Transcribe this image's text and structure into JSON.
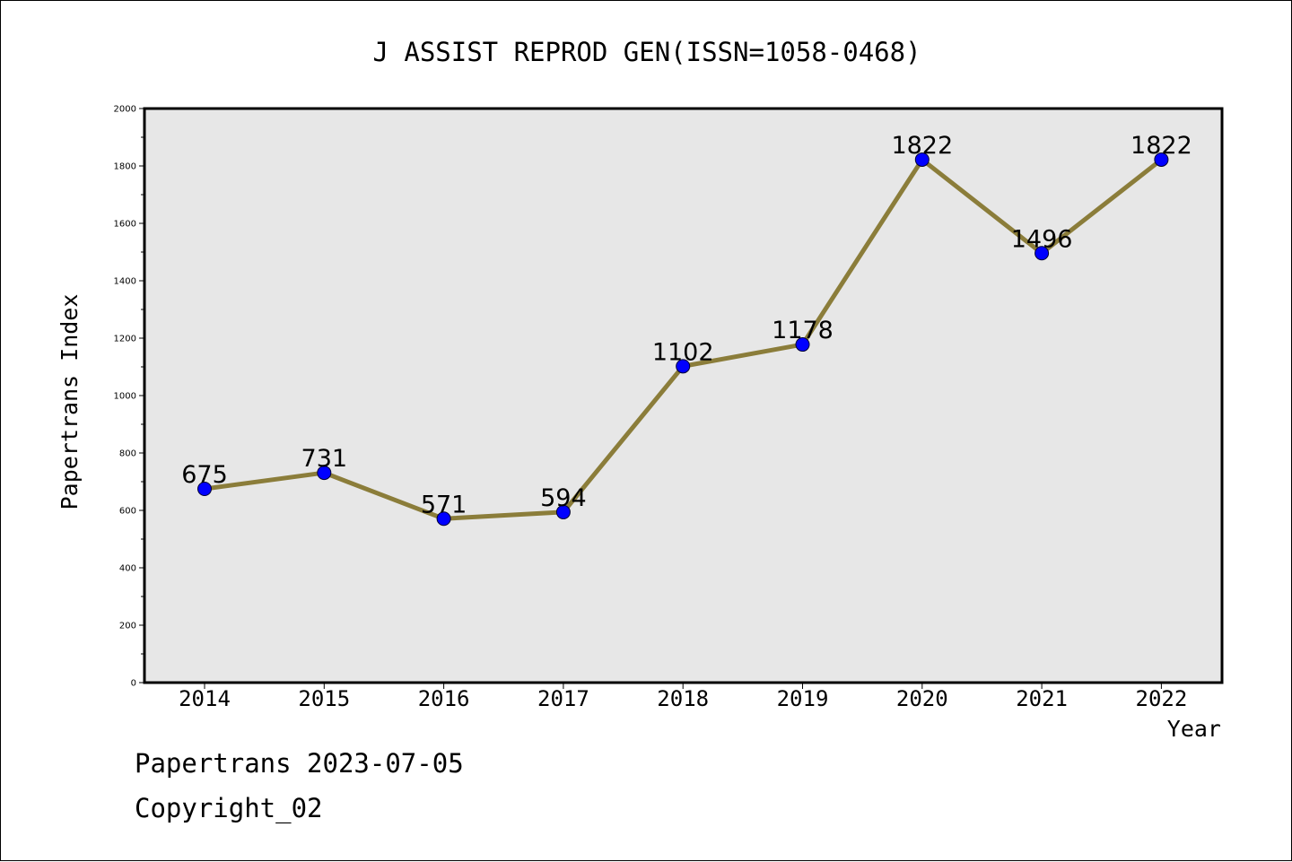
{
  "chart_data": {
    "type": "line",
    "title": "J ASSIST REPROD GEN(ISSN=1058-0468)",
    "xlabel": "Year",
    "ylabel": "Papertrans Index",
    "categories": [
      "2014",
      "2015",
      "2016",
      "2017",
      "2018",
      "2019",
      "2020",
      "2021",
      "2022"
    ],
    "series": [
      {
        "values": [
          675,
          731,
          571,
          594,
          1102,
          1178,
          1822,
          1496,
          1822
        ]
      }
    ],
    "ylim": [
      0,
      2000
    ],
    "yticks": [
      "0",
      "200",
      "400",
      "600",
      "800",
      "1000",
      "1200",
      "1400",
      "1600",
      "1800",
      "2000"
    ],
    "data_labels": [
      "675",
      "731",
      "571",
      "594",
      "1102",
      "1178",
      "1822",
      "1496",
      "1822"
    ],
    "grid": false,
    "colors": {
      "line": "#8b7d3a",
      "marker": "#0000ff",
      "plot_background": "#e7e7e7"
    }
  },
  "footer": {
    "line1": "Papertrans 2023-07-05",
    "line2": "Copyright_02"
  }
}
